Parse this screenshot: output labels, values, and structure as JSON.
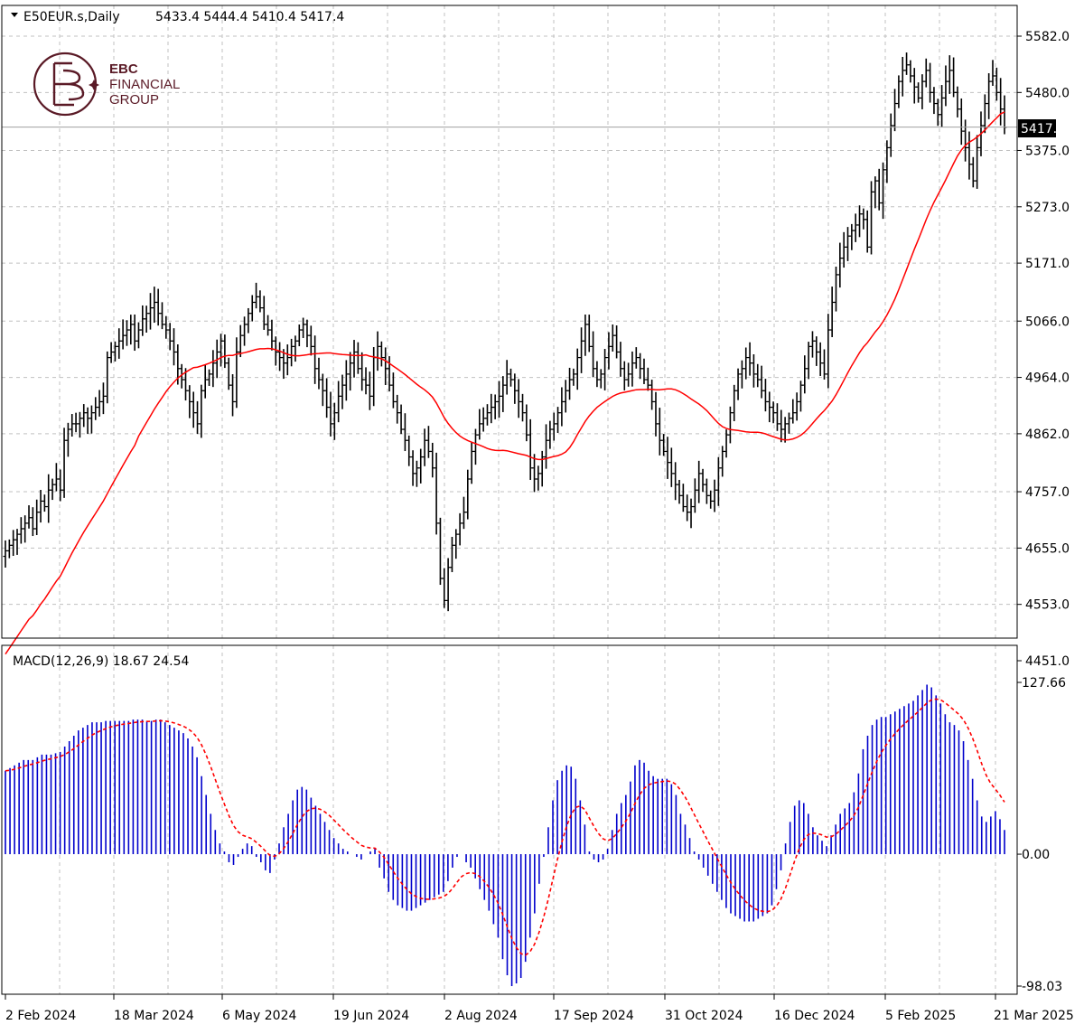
{
  "header": {
    "symbol": "E50EUR.s,Daily",
    "ohlc": "5433.4 5444.4 5410.4 5417.4"
  },
  "logo": {
    "line1": "EBC",
    "line2": "FINANCIAL",
    "line3": "GROUP"
  },
  "indicator": {
    "label": "MACD(12,26,9) 18.67 24.54"
  },
  "colors": {
    "candle": "#000000",
    "ma": "#ff0000",
    "macd_hist": "#0000cc",
    "signal": "#ff0000",
    "grid": "#c0c0c0",
    "logo": "#5a1a26"
  },
  "chart_data": [
    {
      "type": "ohlc-bar",
      "title": "E50EUR.s,Daily",
      "y_ticks": [
        "5582.0",
        "5480.0",
        "5375.0",
        "5273.0",
        "5171.0",
        "5066.0",
        "4964.0",
        "4862.0",
        "4757.0",
        "4655.0",
        "4553.0",
        "4451.0"
      ],
      "ylim": [
        4451.0,
        5582.0
      ],
      "current_price": "5417.4",
      "x_ticks": [
        "2 Feb 2024",
        "18 Mar 2024",
        "6 May 2024",
        "19 Jun 2024",
        "2 Aug 2024",
        "17 Sep 2024",
        "31 Oct 2024",
        "16 Dec 2024",
        "5 Feb 2025",
        "21 Mar 2025"
      ],
      "grid": true,
      "bars_close": [
        4650,
        4660,
        4670,
        4680,
        4690,
        4700,
        4710,
        4690,
        4720,
        4740,
        4730,
        4760,
        4770,
        4780,
        4760,
        4850,
        4870,
        4880,
        4880,
        4890,
        4900,
        4890,
        4900,
        4910,
        4920,
        4930,
        5000,
        5010,
        5020,
        5030,
        5040,
        5050,
        5060,
        5030,
        5050,
        5070,
        5080,
        5090,
        5100,
        5080,
        5060,
        5050,
        5030,
        5010,
        4980,
        4960,
        4940,
        4920,
        4900,
        4880,
        4940,
        4960,
        4970,
        4990,
        5010,
        5030,
        4990,
        4950,
        4920,
        5010,
        5040,
        5060,
        5080,
        5100,
        5110,
        5090,
        5060,
        5050,
        5030,
        5010,
        5000,
        4990,
        5000,
        5020,
        5030,
        5050,
        5060,
        5040,
        5020,
        4980,
        4960,
        4940,
        4910,
        4880,
        4900,
        4930,
        4950,
        4970,
        4990,
        5010,
        4980,
        4960,
        4950,
        4930,
        5000,
        5020,
        5000,
        4980,
        4950,
        4920,
        4900,
        4870,
        4850,
        4820,
        4790,
        4800,
        4820,
        4850,
        4830,
        4800,
        4700,
        4600,
        4560,
        4620,
        4660,
        4680,
        4700,
        4720,
        4780,
        4830,
        4860,
        4880,
        4890,
        4900,
        4910,
        4920,
        4930,
        4950,
        4970,
        4960,
        4940,
        4920,
        4900,
        4860,
        4800,
        4780,
        4790,
        4820,
        4850,
        4870,
        4880,
        4900,
        4920,
        4940,
        4960,
        4970,
        5000,
        5030,
        5060,
        5020,
        4980,
        4960,
        4970,
        5000,
        5020,
        5040,
        5010,
        4980,
        4960,
        4970,
        4990,
        5000,
        4980,
        4960,
        4950,
        4920,
        4880,
        4850,
        4830,
        4810,
        4790,
        4770,
        4750,
        4730,
        4720,
        4730,
        4760,
        4790,
        4770,
        4750,
        4740,
        4760,
        4800,
        4830,
        4860,
        4900,
        4940,
        4970,
        4980,
        5000,
        4990,
        4970,
        4960,
        4940,
        4920,
        4910,
        4900,
        4880,
        4870,
        4880,
        4890,
        4900,
        4920,
        4950,
        4980,
        5020,
        5030,
        5010,
        4990,
        4970,
        5050,
        5100,
        5150,
        5180,
        5200,
        5220,
        5230,
        5240,
        5260,
        5250,
        5200,
        5300,
        5320,
        5280,
        5340,
        5380,
        5420,
        5460,
        5500,
        5520,
        5530,
        5510,
        5490,
        5470,
        5500,
        5520,
        5480,
        5460,
        5440,
        5470,
        5500,
        5520,
        5480,
        5450,
        5410,
        5380,
        5350,
        5320,
        5380,
        5420,
        5460,
        5500,
        5510,
        5480,
        5450,
        5417
      ]
    },
    {
      "type": "bar",
      "title": "MACD(12,26,9) 18.67 24.54",
      "y_ticks": [
        "127.66",
        "0.00",
        "-98.03"
      ],
      "ylim": [
        -98.03,
        127.66
      ],
      "macd_hist": [
        62,
        64,
        66,
        68,
        70,
        70,
        70,
        72,
        74,
        74,
        74,
        75,
        76,
        80,
        84,
        88,
        92,
        94,
        96,
        98,
        98,
        98,
        99,
        99,
        99,
        99,
        99,
        99,
        100,
        100,
        100,
        99,
        99,
        100,
        100,
        98,
        96,
        94,
        92,
        90,
        86,
        80,
        72,
        58,
        44,
        30,
        18,
        8,
        2,
        -6,
        -8,
        -2,
        4,
        8,
        6,
        -2,
        -6,
        -12,
        -14,
        -4,
        8,
        20,
        30,
        40,
        48,
        50,
        48,
        42,
        36,
        30,
        24,
        18,
        12,
        8,
        4,
        2,
        0,
        -2,
        -4,
        0,
        2,
        4,
        -10,
        -18,
        -28,
        -34,
        -38,
        -40,
        -42,
        -42,
        -40,
        -38,
        -36,
        -34,
        -32,
        -30,
        -28,
        -20,
        -10,
        -2,
        0,
        -6,
        -10,
        -18,
        -26,
        -34,
        -42,
        -52,
        -62,
        -78,
        -90,
        -98,
        -96,
        -92,
        -80,
        -62,
        -44,
        -22,
        -2,
        20,
        40,
        55,
        62,
        66,
        65,
        56,
        40,
        22,
        2,
        -4,
        -6,
        -4,
        4,
        18,
        30,
        38,
        44,
        54,
        66,
        70,
        68,
        62,
        58,
        56,
        56,
        56,
        52,
        44,
        30,
        22,
        12,
        2,
        -4,
        -10,
        -16,
        -22,
        -28,
        -34,
        -40,
        -44,
        -46,
        -48,
        -50,
        -50,
        -50,
        -48,
        -46,
        -44,
        -38,
        -26,
        -12,
        8,
        24,
        36,
        40,
        38,
        30,
        20,
        14,
        10,
        6,
        14,
        22,
        30,
        34,
        38,
        46,
        60,
        78,
        88,
        96,
        100,
        102,
        102,
        104,
        106,
        108,
        110,
        112,
        114,
        118,
        122,
        126,
        124,
        118,
        112,
        104,
        98,
        96,
        92,
        84,
        70,
        56,
        40,
        28,
        24,
        28,
        32,
        26,
        18
      ]
    }
  ]
}
